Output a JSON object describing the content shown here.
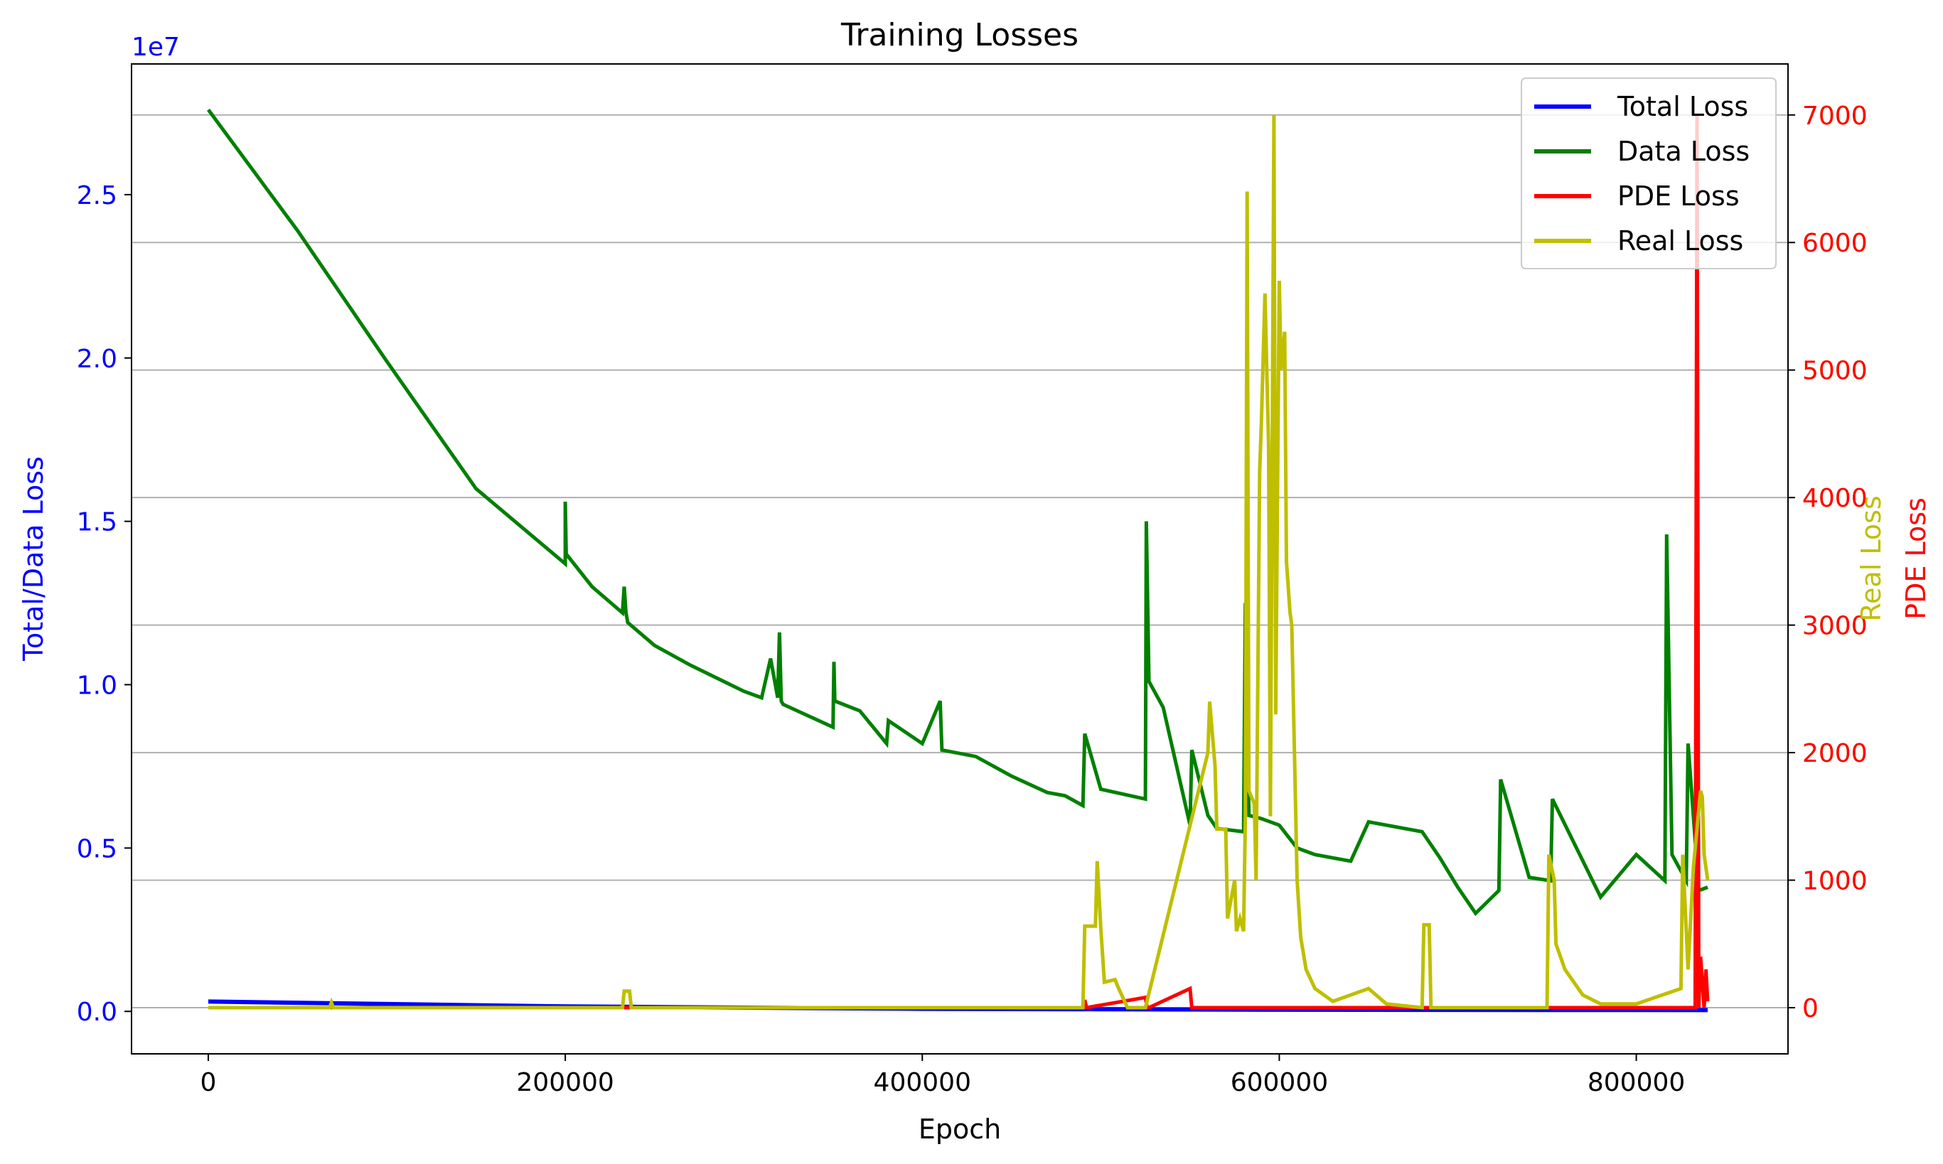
{
  "chart_data": {
    "type": "line",
    "title": "Training Losses",
    "xlabel": "Epoch",
    "ylabel_left": "Total/Data Loss",
    "ylabel_right_1": "Real Loss",
    "ylabel_right_2": "PDE Loss",
    "left_axis_offset_label": "1e7",
    "xlim": [
      -43000,
      885000
    ],
    "ylim_left": [
      -0.13,
      2.9
    ],
    "ylim_right": [
      -362,
      7400
    ],
    "x_ticks": [
      0,
      200000,
      400000,
      600000,
      800000
    ],
    "x_tick_labels": [
      "0",
      "200000",
      "400000",
      "600000",
      "800000"
    ],
    "y_left_ticks": [
      0.0,
      0.5,
      1.0,
      1.5,
      2.0,
      2.5
    ],
    "y_left_tick_labels": [
      "0.0",
      "0.5",
      "1.0",
      "1.5",
      "2.0",
      "2.5"
    ],
    "y_right_ticks": [
      0,
      1000,
      2000,
      3000,
      4000,
      5000,
      6000,
      7000
    ],
    "y_right_tick_labels": [
      "0",
      "1000",
      "2000",
      "3000",
      "4000",
      "5000",
      "6000",
      "7000"
    ],
    "grid": "horizontal gridlines on right axis",
    "legend_position": "top-right",
    "colors": {
      "total": "#0000ff",
      "data": "#008000",
      "pde": "#ff0000",
      "real": "#bfbf00",
      "left_axis": "#0000ff",
      "right_axis": "#ff0000",
      "real_label": "#bfbf00",
      "grid": "#b0b0b0"
    },
    "series": [
      {
        "name": "Total Loss",
        "axis": "left",
        "x": [
          0,
          200000,
          400000,
          600000,
          840000
        ],
        "values": [
          0.03,
          0.015,
          0.008,
          0.005,
          0.004
        ]
      },
      {
        "name": "Data Loss",
        "axis": "left",
        "x": [
          0,
          50000,
          100000,
          150000,
          200000,
          200000,
          200500,
          215000,
          232000,
          233000,
          234000,
          235000,
          250000,
          270000,
          300000,
          310000,
          315000,
          319000,
          320000,
          321000,
          322000,
          350000,
          350500,
          351000,
          365000,
          380000,
          381000,
          400000,
          410000,
          411000,
          430000,
          450000,
          470000,
          480000,
          490000,
          491000,
          500000,
          525000,
          525500,
          527000,
          535000,
          550000,
          551000,
          560000,
          565000,
          580000,
          581000,
          583000,
          590000,
          600000,
          610000,
          620000,
          640000,
          650000,
          680000,
          690000,
          700000,
          710000,
          723000,
          724000,
          740000,
          752000,
          753000,
          780000,
          800000,
          816000,
          817000,
          820000,
          828000,
          829000,
          835000,
          840000
        ],
        "values": [
          2.76,
          2.39,
          1.99,
          1.6,
          1.37,
          1.56,
          1.4,
          1.3,
          1.22,
          1.3,
          1.22,
          1.19,
          1.12,
          1.06,
          0.98,
          0.96,
          1.08,
          0.96,
          1.16,
          0.95,
          0.94,
          0.87,
          1.07,
          0.95,
          0.92,
          0.82,
          0.89,
          0.82,
          0.95,
          0.8,
          0.78,
          0.72,
          0.67,
          0.66,
          0.63,
          0.85,
          0.68,
          0.65,
          1.5,
          1.01,
          0.93,
          0.57,
          0.8,
          0.6,
          0.56,
          0.55,
          1.25,
          0.6,
          0.59,
          0.57,
          0.5,
          0.48,
          0.46,
          0.58,
          0.55,
          0.47,
          0.38,
          0.3,
          0.37,
          0.71,
          0.41,
          0.4,
          0.65,
          0.35,
          0.48,
          0.4,
          1.46,
          0.48,
          0.4,
          0.82,
          0.37,
          0.38
        ]
      },
      {
        "name": "PDE Loss",
        "axis": "right",
        "x": [
          0,
          490000,
          491000,
          492000,
          525000,
          526000,
          527000,
          550000,
          551000,
          552000,
          833000,
          834000,
          835000,
          836000,
          838000,
          839000,
          840000
        ],
        "values": [
          0,
          0,
          60,
          0,
          80,
          0,
          0,
          150,
          0,
          0,
          0,
          7000,
          0,
          400,
          0,
          300,
          50
        ]
      },
      {
        "name": "Real Loss",
        "axis": "right",
        "x": [
          0,
          68000,
          69000,
          70000,
          232000,
          233000,
          236000,
          237000,
          490000,
          491000,
          497000,
          498000,
          500000,
          502000,
          508000,
          510000,
          515000,
          525000,
          560000,
          561000,
          564000,
          565000,
          570000,
          571000,
          575000,
          576000,
          578000,
          580000,
          581000,
          582000,
          583000,
          586000,
          587000,
          589000,
          590000,
          592000,
          594000,
          595000,
          597000,
          598000,
          600000,
          601000,
          603000,
          604000,
          606000,
          607000,
          610000,
          612000,
          615000,
          620000,
          630000,
          640000,
          650000,
          660000,
          680000,
          681000,
          684000,
          685000,
          700000,
          750000,
          751000,
          754000,
          755000,
          760000,
          770000,
          780000,
          800000,
          825000,
          826000,
          829000,
          832000,
          836000,
          837000,
          838000,
          840000
        ],
        "values": [
          0,
          0,
          40,
          0,
          0,
          130,
          130,
          0,
          0,
          640,
          640,
          1150,
          620,
          200,
          220,
          150,
          0,
          0,
          2000,
          2400,
          1900,
          1400,
          1400,
          700,
          1000,
          600,
          700,
          600,
          1500,
          6400,
          1700,
          1600,
          1000,
          4200,
          4600,
          5600,
          4400,
          1500,
          7000,
          2300,
          5700,
          5000,
          5300,
          3500,
          3100,
          3000,
          1000,
          550,
          300,
          150,
          50,
          100,
          150,
          30,
          0,
          650,
          650,
          0,
          0,
          0,
          1200,
          1000,
          500,
          300,
          100,
          30,
          30,
          150,
          1200,
          300,
          1100,
          1700,
          1650,
          1200,
          1000
        ]
      }
    ]
  }
}
